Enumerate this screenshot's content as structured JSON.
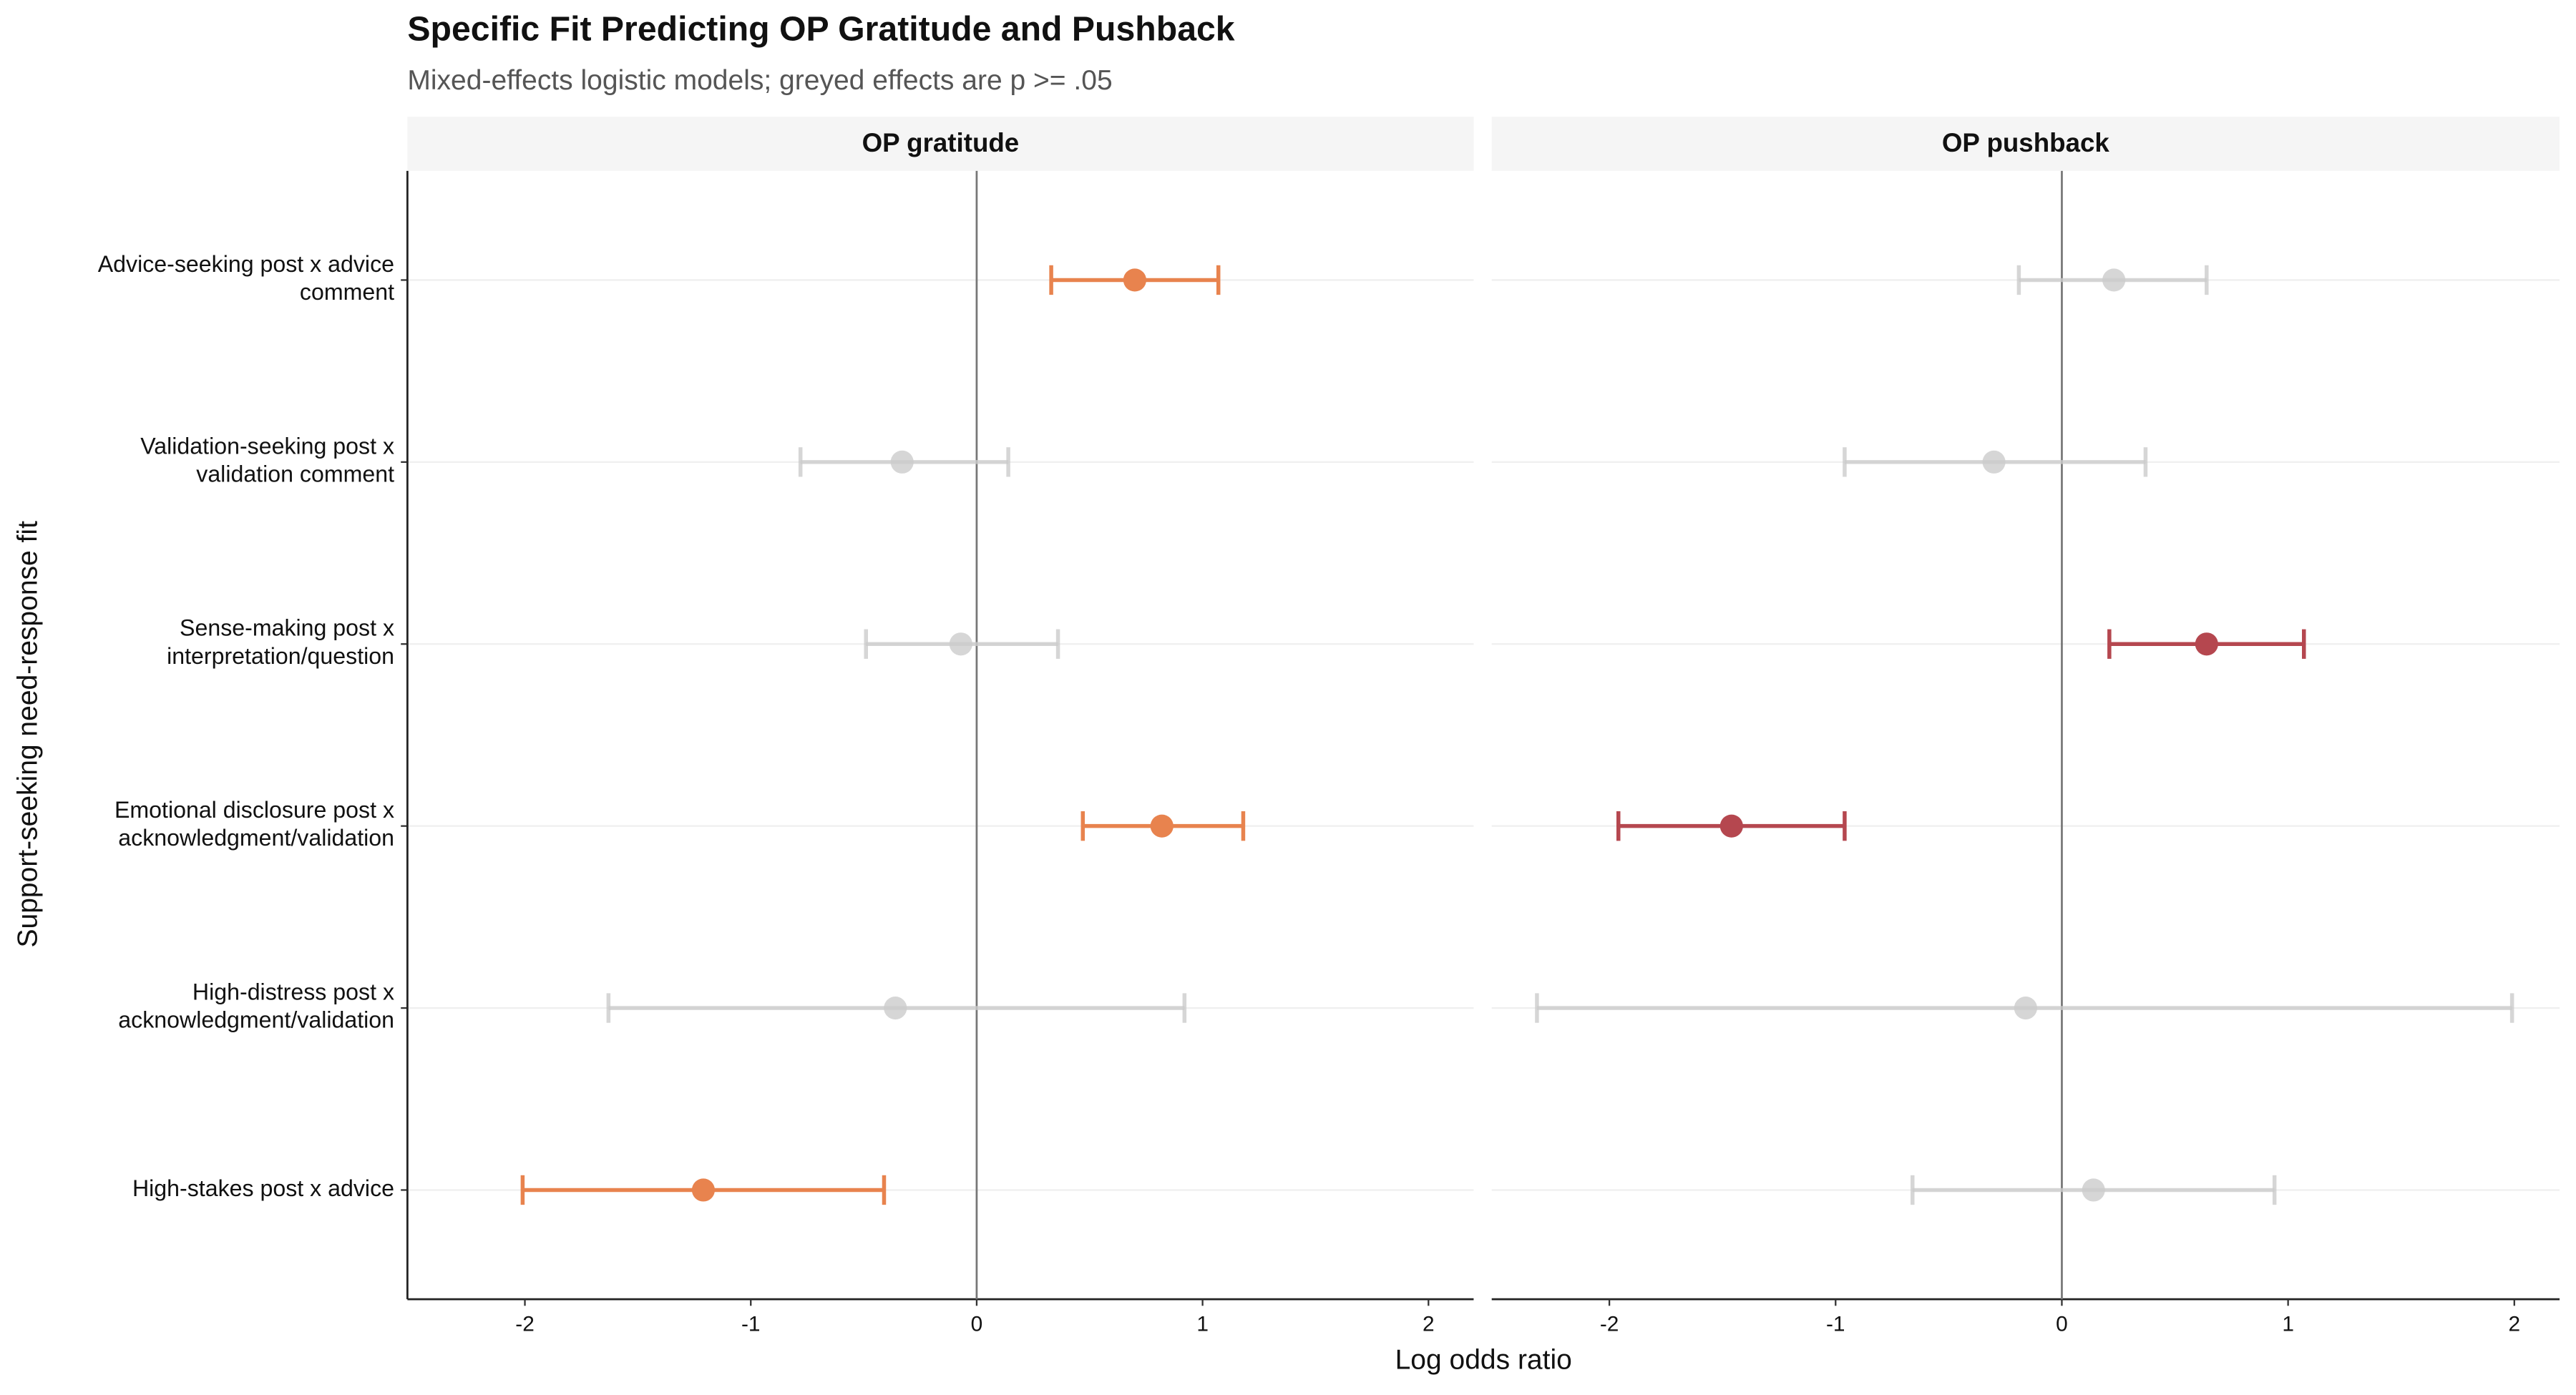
{
  "chart_data": {
    "type": "forest",
    "title": "Specific Fit Predicting OP Gratitude and Pushback",
    "subtitle": "Mixed-effects logistic models; greyed effects are p >= .05",
    "x_label": "Log odds ratio",
    "y_label": "Support-seeking need-response fit",
    "categories": [
      "Advice-seeking post x advice\ncomment",
      "Validation-seeking post x\nvalidation comment",
      "Sense-making post x\ninterpretation/question",
      "Emotional disclosure post x\nacknowledgment/validation",
      "High-distress post x\nacknowledgment/validation",
      "High-stakes post x advice"
    ],
    "xlim": [
      -2.52,
      2.2
    ],
    "xticks": [
      -2,
      -1,
      0,
      1,
      2
    ],
    "grey_color": "#cccccc",
    "facets": [
      {
        "name": "OP gratitude",
        "color": "#e8834e",
        "estimates": [
          0.7,
          -0.33,
          -0.07,
          0.82,
          -0.36,
          -1.21
        ],
        "lower": [
          0.33,
          -0.78,
          -0.49,
          0.47,
          -1.63,
          -2.01
        ],
        "upper": [
          1.07,
          0.14,
          0.36,
          1.18,
          0.92,
          -0.41
        ],
        "significant": [
          true,
          false,
          false,
          true,
          false,
          true
        ]
      },
      {
        "name": "OP pushback",
        "color": "#b5474f",
        "estimates": [
          0.23,
          -0.3,
          0.64,
          -1.46,
          -0.16,
          0.14
        ],
        "lower": [
          -0.19,
          -0.96,
          0.21,
          -1.96,
          -2.32,
          -0.66
        ],
        "upper": [
          0.64,
          0.37,
          1.07,
          -0.96,
          1.99,
          0.94
        ],
        "significant": [
          false,
          false,
          true,
          true,
          false,
          false
        ]
      }
    ]
  }
}
